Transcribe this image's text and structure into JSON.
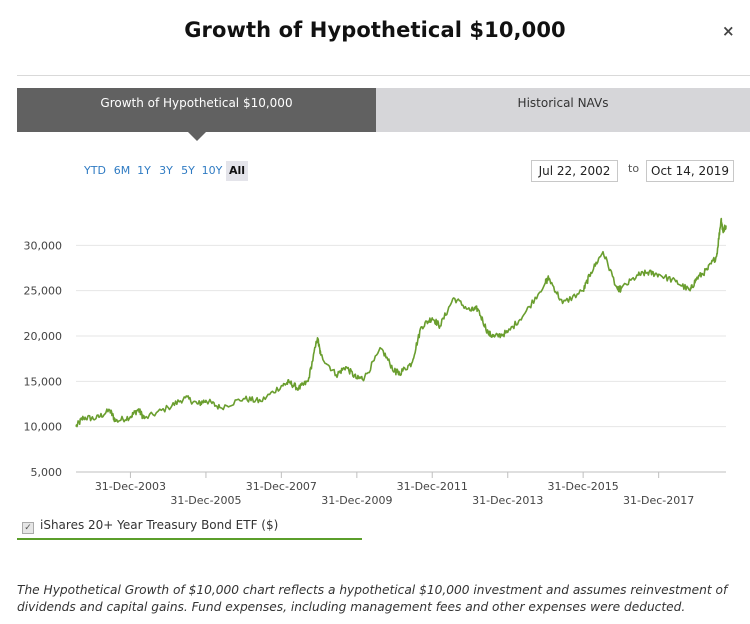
{
  "dialog": {
    "title": "Growth of Hypothetical $10,000",
    "close_label": "×"
  },
  "tabs": [
    {
      "label": "Growth of Hypothetical $10,000",
      "active": true
    },
    {
      "label": "Historical NAVs",
      "active": false
    }
  ],
  "range_buttons": [
    "YTD",
    "6M",
    "1Y",
    "3Y",
    "5Y",
    "10Y",
    "All"
  ],
  "range_selected": "All",
  "date_range": {
    "from": "Jul 22, 2002",
    "to_label": "to",
    "to": "Oct 14, 2019"
  },
  "legend": {
    "label": "iShares 20+ Year Treasury Bond ETF ($)",
    "checked": true
  },
  "disclaimer": "The Hypothetical Growth of $10,000 chart reflects a hypothetical $10,000 investment and assumes reinvestment of dividends and capital gains. Fund expenses, including management fees and other expenses were deducted.",
  "colors": {
    "series": "#6a9e2f",
    "grid": "#e6e6e6",
    "tab_active": "#616161",
    "tab_inactive": "#d6d6d9",
    "link": "#2f7bc3"
  },
  "chart_data": {
    "type": "line",
    "x_start": "2002-07-22",
    "x_end": "2019-10-14",
    "ylim": [
      5000,
      35000
    ],
    "yticks": [
      5000,
      10000,
      15000,
      20000,
      25000,
      30000
    ],
    "ytick_labels": [
      "5,000",
      "10,000",
      "15,000",
      "20,000",
      "25,000",
      "30,000"
    ],
    "xticks": [
      {
        "date": "2003-12-31",
        "label": "31-Dec-2003",
        "row": 1
      },
      {
        "date": "2005-12-31",
        "label": "31-Dec-2005",
        "row": 2
      },
      {
        "date": "2007-12-31",
        "label": "31-Dec-2007",
        "row": 1
      },
      {
        "date": "2009-12-31",
        "label": "31-Dec-2009",
        "row": 2
      },
      {
        "date": "2011-12-31",
        "label": "31-Dec-2011",
        "row": 1
      },
      {
        "date": "2013-12-31",
        "label": "31-Dec-2013",
        "row": 2
      },
      {
        "date": "2015-12-31",
        "label": "31-Dec-2015",
        "row": 1
      },
      {
        "date": "2017-12-31",
        "label": "31-Dec-2017",
        "row": 2
      }
    ],
    "grid": true,
    "series": [
      {
        "name": "iShares 20+ Year Treasury Bond ETF ($)",
        "points": [
          [
            "2002-07-22",
            10000
          ],
          [
            "2002-10-01",
            11000
          ],
          [
            "2003-02-01",
            10900
          ],
          [
            "2003-06-15",
            11800
          ],
          [
            "2003-08-10",
            10600
          ],
          [
            "2003-12-31",
            11100
          ],
          [
            "2004-03-15",
            11900
          ],
          [
            "2004-05-15",
            10900
          ],
          [
            "2004-12-31",
            12100
          ],
          [
            "2005-06-15",
            13200
          ],
          [
            "2005-10-15",
            12500
          ],
          [
            "2005-12-31",
            12900
          ],
          [
            "2006-05-15",
            12100
          ],
          [
            "2006-12-31",
            13100
          ],
          [
            "2007-06-15",
            12800
          ],
          [
            "2007-12-31",
            14500
          ],
          [
            "2008-03-15",
            14900
          ],
          [
            "2008-06-15",
            14200
          ],
          [
            "2008-09-15",
            15000
          ],
          [
            "2008-12-15",
            19800
          ],
          [
            "2009-01-15",
            17900
          ],
          [
            "2009-06-15",
            15700
          ],
          [
            "2009-09-15",
            16600
          ],
          [
            "2009-12-31",
            15300
          ],
          [
            "2010-03-15",
            15400
          ],
          [
            "2010-08-25",
            18600
          ],
          [
            "2010-12-31",
            16100
          ],
          [
            "2011-02-15",
            15900
          ],
          [
            "2011-06-15",
            17000
          ],
          [
            "2011-09-15",
            21000
          ],
          [
            "2011-12-31",
            22000
          ],
          [
            "2012-03-15",
            21100
          ],
          [
            "2012-07-25",
            24200
          ],
          [
            "2012-12-31",
            22800
          ],
          [
            "2013-03-15",
            23000
          ],
          [
            "2013-06-25",
            20300
          ],
          [
            "2013-08-25",
            19900
          ],
          [
            "2013-12-31",
            20400
          ],
          [
            "2014-06-15",
            22500
          ],
          [
            "2014-12-31",
            25900
          ],
          [
            "2015-02-01",
            26400
          ],
          [
            "2015-06-15",
            23600
          ],
          [
            "2015-12-31",
            25000
          ],
          [
            "2016-03-15",
            27000
          ],
          [
            "2016-07-10",
            29300
          ],
          [
            "2016-11-30",
            25100
          ],
          [
            "2016-12-31",
            25200
          ],
          [
            "2017-06-15",
            26700
          ],
          [
            "2017-09-15",
            27000
          ],
          [
            "2017-12-31",
            26800
          ],
          [
            "2018-06-15",
            26000
          ],
          [
            "2018-10-31",
            25000
          ],
          [
            "2018-12-31",
            26300
          ],
          [
            "2019-04-15",
            27300
          ],
          [
            "2019-07-15",
            28800
          ],
          [
            "2019-08-28",
            32900
          ],
          [
            "2019-09-15",
            31500
          ],
          [
            "2019-10-14",
            32200
          ]
        ]
      }
    ]
  }
}
